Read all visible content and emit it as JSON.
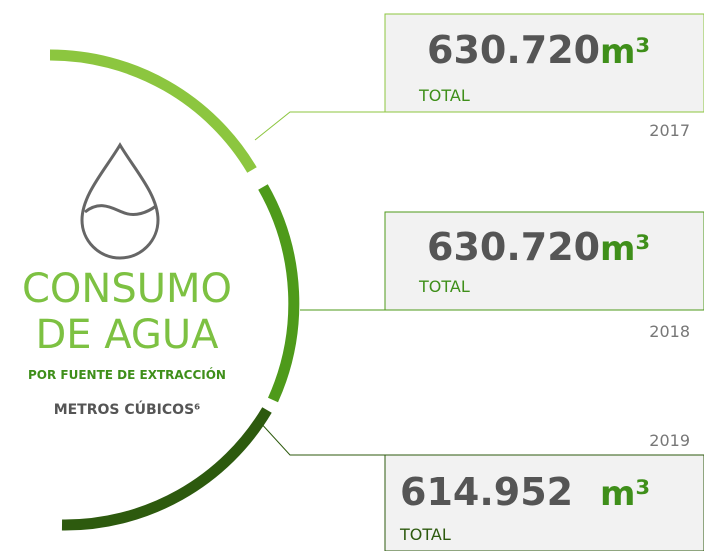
{
  "title_line1": "CONSUMO",
  "title_line2": "DE AGUA",
  "subtitle": "POR FUENTE DE EXTRACCIÓN",
  "unit_note": "METROS CÚBICOS⁶",
  "entries": [
    {
      "value": "630.720",
      "unit": "m³",
      "label": "TOTAL",
      "year": "2017"
    },
    {
      "value": "630.720",
      "unit": "m³",
      "label": "TOTAL",
      "year": "2018"
    },
    {
      "value": "614.952",
      "unit": "m³",
      "label": "TOTAL",
      "year": "2019"
    }
  ]
}
